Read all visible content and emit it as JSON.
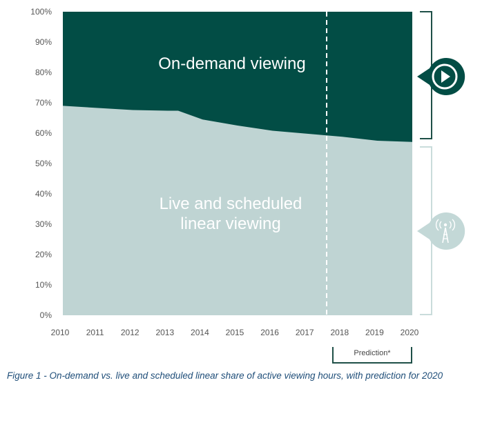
{
  "chart_data": {
    "type": "area",
    "x": [
      2010,
      2011,
      2012,
      2013,
      2013.3,
      2014,
      2015,
      2016,
      2017,
      2018,
      2019,
      2020
    ],
    "series": [
      {
        "name": "Live and scheduled linear viewing",
        "color": "#bfd4d3",
        "values": [
          69,
          68.3,
          67.6,
          67.4,
          67.4,
          64.5,
          62.5,
          60.8,
          59.8,
          58.8,
          57.5,
          57.1
        ]
      },
      {
        "name": "On-demand viewing",
        "color": "#024d45",
        "values": [
          31,
          31.7,
          32.4,
          32.6,
          32.6,
          35.5,
          37.5,
          39.2,
          40.2,
          41.2,
          42.5,
          42.9
        ]
      }
    ],
    "xticks": [
      "2010",
      "2011",
      "2012",
      "2013",
      "2014",
      "2015",
      "2016",
      "2017",
      "2018",
      "2019",
      "2020"
    ],
    "yticks": [
      "0%",
      "10%",
      "20%",
      "30%",
      "40%",
      "50%",
      "60%",
      "70%",
      "80%",
      "90%",
      "100%"
    ],
    "xlim": [
      2010,
      2020
    ],
    "ylim": [
      0,
      100
    ],
    "stacked": true,
    "prediction_start": 2017.55,
    "prediction_label": "Prediction*",
    "area_labels": {
      "top": [
        "On-demand viewing"
      ],
      "bottom": [
        "Live and scheduled",
        "linear viewing"
      ]
    },
    "icons": [
      "play-icon",
      "broadcast-tower-icon"
    ],
    "grid": false
  },
  "caption": "Figure 1 - On-demand vs. live and scheduled linear share of active viewing hours, with prediction for 2020"
}
